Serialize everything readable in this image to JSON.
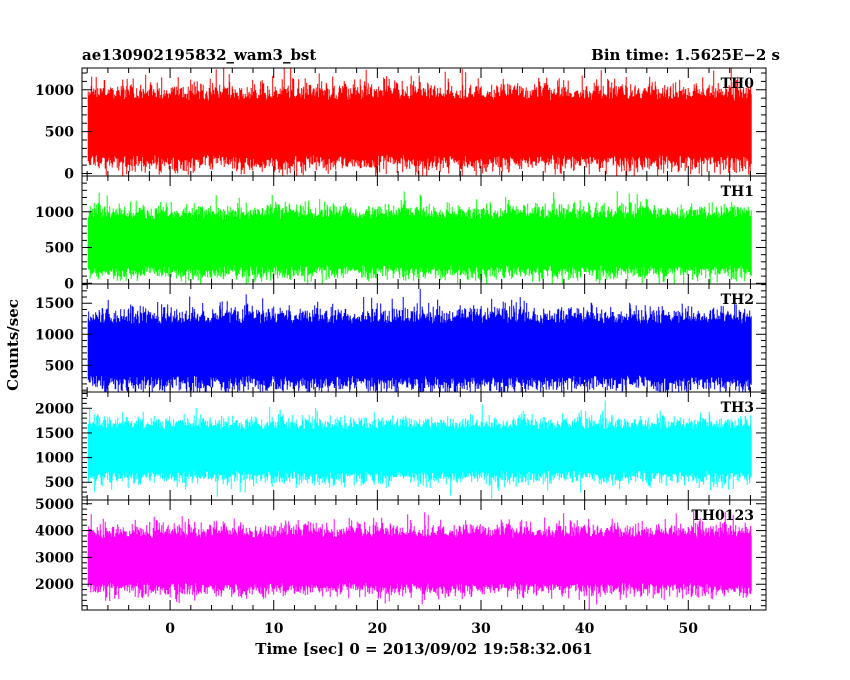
{
  "chart_data": {
    "type": "line",
    "title_left": "ae130902195832_wam3_bst",
    "title_right": "Bin time: 1.5625E−2 s",
    "xlabel": "Time [sec] 0 = 2013/09/02 19:58:32.061",
    "ylabel": "Counts/sec",
    "xlim": [
      -8.5,
      57.5
    ],
    "x_ticks": [
      0,
      10,
      20,
      30,
      40,
      50
    ],
    "x_tick_labels": [
      "0",
      "10",
      "20",
      "30",
      "40",
      "50"
    ],
    "data_x_range": [
      -7.9,
      56.1
    ],
    "bin_time": 0.015625,
    "grid": false,
    "legend": "none",
    "series": [
      {
        "label": "TH0",
        "color": "#ff0000",
        "ylim": [
          -30,
          1260
        ],
        "y_ticks": [
          0,
          500,
          1000
        ],
        "y_tick_labels": [
          "0",
          "500",
          "1000"
        ],
        "typical_range": [
          120,
          980
        ],
        "mean": 550
      },
      {
        "label": "TH1",
        "color": "#00ff00",
        "ylim": [
          -10,
          1500
        ],
        "y_ticks": [
          0,
          500,
          1000
        ],
        "y_tick_labels": [
          "0",
          "500",
          "1000"
        ],
        "typical_range": [
          150,
          1000
        ],
        "mean": 560
      },
      {
        "label": "TH2",
        "color": "#0000ff",
        "ylim": [
          70,
          1810
        ],
        "y_ticks": [
          500,
          1000,
          1500
        ],
        "y_tick_labels": [
          "500",
          "1000",
          "1500"
        ],
        "typical_range": [
          200,
          1300
        ],
        "mean": 720
      },
      {
        "label": "TH3",
        "color": "#00ffff",
        "ylim": [
          140,
          2330
        ],
        "y_ticks": [
          500,
          1000,
          1500,
          2000
        ],
        "y_tick_labels": [
          "500",
          "1000",
          "1500",
          "2000"
        ],
        "typical_range": [
          600,
          1700
        ],
        "mean": 1150
      },
      {
        "label": "TH0123",
        "color": "#ff00ff",
        "ylim": [
          1040,
          5140
        ],
        "y_ticks": [
          2000,
          3000,
          4000,
          5000
        ],
        "y_tick_labels": [
          "2000",
          "3000",
          "4000",
          "5000"
        ],
        "typical_range": [
          1800,
          4000
        ],
        "mean": 2900
      }
    ]
  }
}
